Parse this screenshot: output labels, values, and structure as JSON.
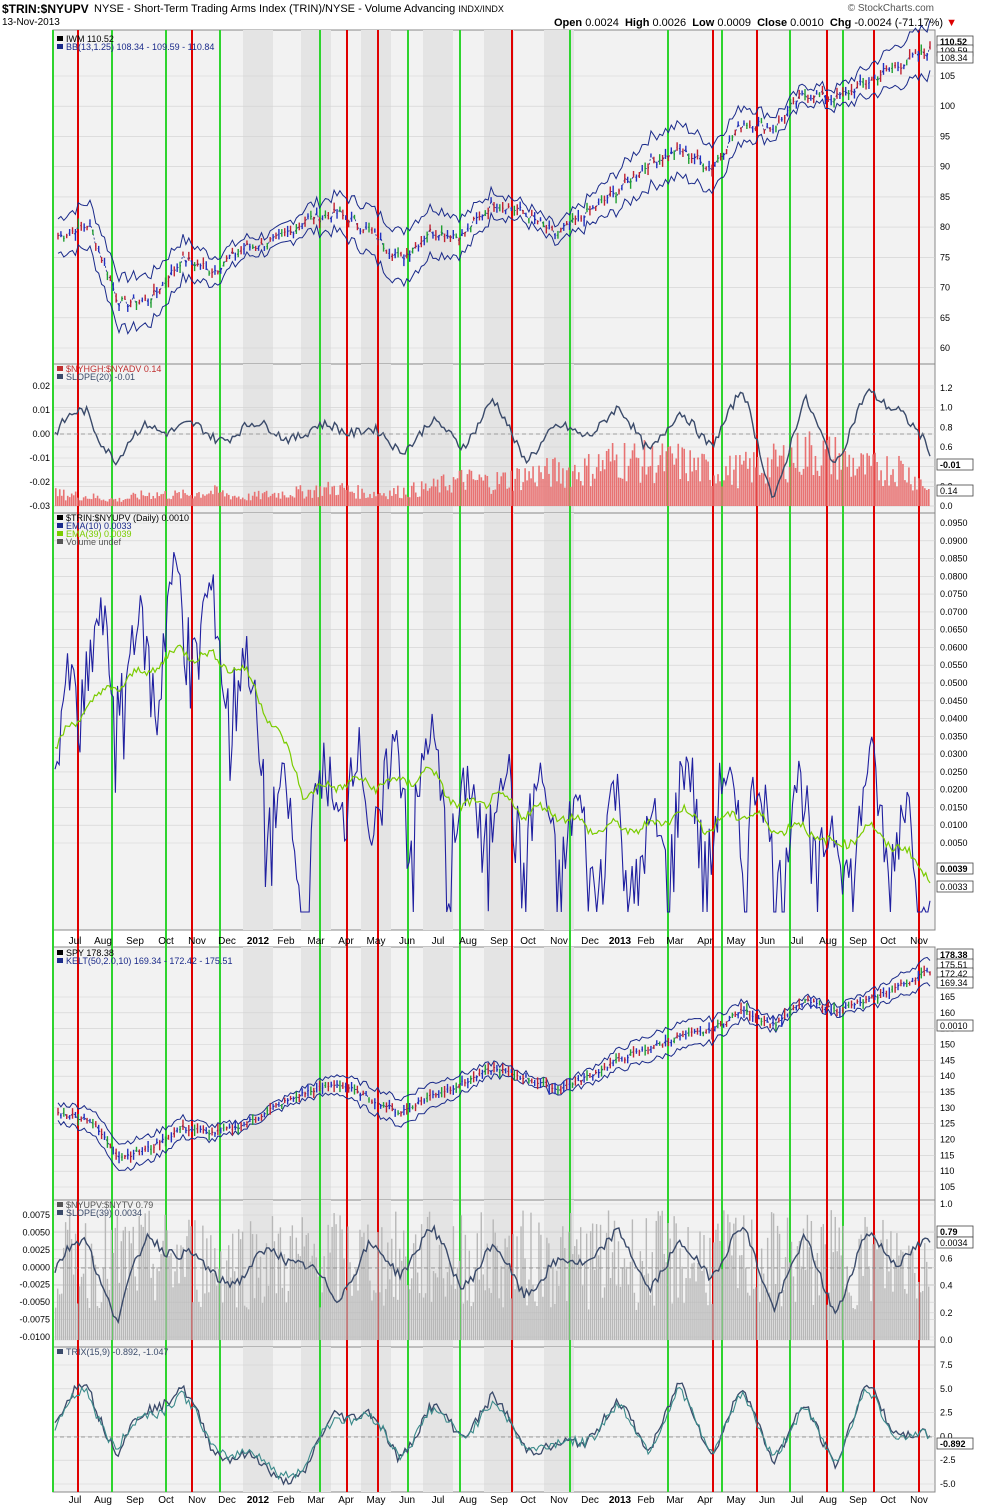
{
  "header": {
    "symbol": "$TRIN:$NYUPV",
    "description": "NYSE - Short-Term Trading Arms Index (TRIN)/NYSE - Volume Advancing",
    "exchange": "INDX/INDX",
    "date": "13-Nov-2013",
    "open_label": "Open",
    "open": "0.0024",
    "high_label": "High",
    "high": "0.0026",
    "low_label": "Low",
    "low": "0.0009",
    "close_label": "Close",
    "close": "0.0010",
    "chg_label": "Chg",
    "chg": "-0.0024 (-71.17%)",
    "brand": "© StockCharts.com"
  },
  "colors": {
    "red_line": "#e00000",
    "green_line": "#2ed42e",
    "price_blue": "#2020a0",
    "ema_green": "#7acc00",
    "hist_red": "#e87272",
    "slope_line": "#3a4a6a",
    "volume_gray": "#b8b8b8"
  },
  "x_axis": {
    "months": [
      "Jul",
      "Aug",
      "Sep",
      "Oct",
      "Nov",
      "Dec",
      "2012",
      "Feb",
      "Mar",
      "Apr",
      "May",
      "Jun",
      "Jul",
      "Aug",
      "Sep",
      "Oct",
      "Nov",
      "Dec",
      "2013",
      "Feb",
      "Mar",
      "Apr",
      "May",
      "Jun",
      "Jul",
      "Aug",
      "Sep",
      "Oct",
      "Nov"
    ]
  },
  "chart_data": [
    {
      "type": "line",
      "panel": "IWM price with Bollinger Bands",
      "legend": [
        "IWM  110.52",
        "BB(13,1.25) 108.34 - 109.59 - 110.84"
      ],
      "y_ticks": [
        "105",
        "100",
        "95",
        "90",
        "85",
        "80",
        "75",
        "70",
        "65",
        "60"
      ],
      "ylim": [
        57,
        113
      ],
      "last_value_labels": [
        "110.52",
        "109.59",
        "108.34"
      ],
      "x": [
        "Jul",
        "Aug",
        "Sep",
        "Oct",
        "Nov",
        "Dec",
        "2012",
        "Feb",
        "Mar",
        "Apr",
        "May",
        "Jun",
        "Jul",
        "Aug",
        "Sep",
        "Oct",
        "Nov",
        "Dec",
        "2013",
        "Feb",
        "Mar",
        "Apr",
        "May",
        "Jun",
        "Jul",
        "Aug",
        "Sep",
        "Oct",
        "Nov"
      ],
      "series": [
        {
          "name": "IWM",
          "values": [
            78,
            80,
            66,
            67,
            74,
            72,
            76,
            77,
            81,
            82,
            79,
            74,
            79,
            78,
            84,
            82,
            78,
            82,
            86,
            91,
            93,
            90,
            98,
            97,
            103,
            102,
            105,
            108,
            110.5
          ]
        }
      ]
    },
    {
      "type": "bar",
      "panel": "$NYHGH:$NYADV with SLOPE(20)",
      "legend": [
        "$NYHGH:$NYADV  0.14",
        "SLOPE(20) -0.01"
      ],
      "y_ticks_left": [
        "0.02",
        "0.01",
        "0.00",
        "-0.01",
        "-0.02",
        "-0.03"
      ],
      "y_ticks_right": [
        "1.2",
        "1.0",
        "0.8",
        "0.6",
        "0.4",
        "0.2",
        "0.0"
      ],
      "last_value_labels": [
        "-0.01",
        "0.14"
      ],
      "series": [
        {
          "name": "$NYHGH:$NYADV",
          "values": [
            0.1,
            0.08,
            0.05,
            0.1,
            0.09,
            0.12,
            0.07,
            0.1,
            0.12,
            0.15,
            0.1,
            0.12,
            0.15,
            0.22,
            0.2,
            0.25,
            0.28,
            0.3,
            0.4,
            0.36,
            0.36,
            0.28,
            0.3,
            0.35,
            0.45,
            0.4,
            0.3,
            0.32,
            0.14
          ]
        },
        {
          "name": "SLOPE(20)",
          "values": [
            0.0,
            0.01,
            -0.012,
            0.005,
            0.002,
            0.0,
            0.001,
            0.003,
            -0.002,
            0.005,
            0.0,
            -0.005,
            0.003,
            -0.003,
            0.012,
            -0.008,
            0.0,
            0.002,
            0.008,
            -0.004,
            0.006,
            -0.002,
            0.016,
            -0.025,
            0.012,
            -0.01,
            0.015,
            0.013,
            -0.01
          ]
        }
      ]
    },
    {
      "type": "line",
      "panel": "$TRIN:$NYUPV (Daily) with EMA(10), EMA(39)",
      "legend": [
        "$TRIN:$NYUPV (Daily) 0.0010",
        "EMA(10) 0.0033",
        "EMA(39) 0.0039",
        "Volume undef"
      ],
      "y_ticks": [
        "0.0950",
        "0.0900",
        "0.0850",
        "0.0800",
        "0.0750",
        "0.0700",
        "0.0650",
        "0.0600",
        "0.0550",
        "0.0500",
        "0.0450",
        "0.0400",
        "0.0350",
        "0.0300",
        "0.0250",
        "0.0200",
        "0.0150",
        "0.0100",
        "0.0050"
      ],
      "log_scale": true,
      "last_value_labels": [
        "0.0039",
        "0.0033"
      ],
      "series": [
        {
          "name": "EMA(10)",
          "values": [
            0.008,
            0.03,
            0.025,
            0.03,
            0.045,
            0.035,
            0.022,
            0.007,
            0.004,
            0.01,
            0.008,
            0.009,
            0.01,
            0.006,
            0.008,
            0.007,
            0.006,
            0.005,
            0.006,
            0.004,
            0.008,
            0.006,
            0.008,
            0.005,
            0.007,
            0.004,
            0.008,
            0.006,
            0.0033
          ]
        },
        {
          "name": "EMA(39)",
          "values": [
            0.012,
            0.018,
            0.022,
            0.025,
            0.03,
            0.028,
            0.025,
            0.015,
            0.008,
            0.009,
            0.009,
            0.009,
            0.01,
            0.007,
            0.008,
            0.007,
            0.007,
            0.006,
            0.006,
            0.006,
            0.007,
            0.006,
            0.007,
            0.006,
            0.006,
            0.005,
            0.006,
            0.005,
            0.0039
          ]
        }
      ]
    },
    {
      "type": "line",
      "panel": "SPY price with Keltner Channels",
      "legend": [
        "SPY  178.38",
        "KELT(50,2.0,10) 169.34 - 172.42 - 175.51"
      ],
      "y_ticks": [
        "165",
        "160",
        "155",
        "150",
        "145",
        "140",
        "135",
        "130",
        "125",
        "120",
        "115",
        "110",
        "105"
      ],
      "ylim": [
        102,
        182
      ],
      "last_value_labels": [
        "178.38",
        "175.51",
        "172.42",
        "169.34",
        "0.0010"
      ],
      "series": [
        {
          "name": "SPY",
          "values": [
            130,
            128,
            115,
            118,
            125,
            123,
            126,
            132,
            137,
            140,
            135,
            130,
            136,
            140,
            145,
            142,
            138,
            142,
            148,
            152,
            156,
            158,
            165,
            160,
            168,
            165,
            168,
            173,
            178.4
          ]
        }
      ]
    },
    {
      "type": "bar",
      "panel": "$NYUPV:$NYTV with SLOPE(39)",
      "legend": [
        "$NYUPV:$NYTV  0.79",
        "SLOPE(39) 0.0034"
      ],
      "y_ticks_left": [
        "0.0075",
        "0.0050",
        "0.0025",
        "0.0000",
        "-0.0025",
        "-0.0050",
        "-0.0075",
        "-0.0100"
      ],
      "y_ticks_right": [
        "1.0",
        "0.8",
        "0.6",
        "0.4",
        "0.2",
        "0.0"
      ],
      "last_value_labels": [
        "0.79",
        "0.0034"
      ],
      "series": [
        {
          "name": "$NYUPV:$NYTV",
          "values": [
            0.5,
            0.6,
            0.4,
            0.6,
            0.5,
            0.5,
            0.6,
            0.5,
            0.5,
            0.6,
            0.4,
            0.5,
            0.6,
            0.5,
            0.5,
            0.6,
            0.4,
            0.5,
            0.6,
            0.5,
            0.6,
            0.5,
            0.6,
            0.4,
            0.6,
            0.5,
            0.6,
            0.5,
            0.79
          ]
        },
        {
          "name": "SLOPE(39)",
          "values": [
            0.0,
            0.005,
            -0.008,
            0.006,
            0.002,
            0.0,
            -0.002,
            0.004,
            0.0,
            -0.004,
            0.003,
            0.0,
            0.006,
            -0.002,
            0.003,
            -0.003,
            0.0,
            0.002,
            0.005,
            -0.002,
            0.003,
            0.0,
            0.006,
            -0.005,
            0.004,
            -0.006,
            0.005,
            0.002,
            0.0034
          ]
        }
      ]
    },
    {
      "type": "line",
      "panel": "TRIX(15,9)",
      "legend": [
        "TRIX(15,9) -0.892, -1.047"
      ],
      "y_ticks": [
        "7.5",
        "5.0",
        "2.5",
        "0.0",
        "-2.5",
        "-5.0"
      ],
      "ylim": [
        -5.2,
        8
      ],
      "last_value_labels": [
        "-0.892"
      ],
      "series": [
        {
          "name": "TRIX",
          "values": [
            1.0,
            6.0,
            -2.0,
            3.0,
            5.0,
            -1.0,
            -2.5,
            -4.0,
            -4.5,
            3.0,
            2.0,
            -2.0,
            2.5,
            0.5,
            3.5,
            -0.5,
            -2.0,
            0.0,
            3.0,
            -1.0,
            5.0,
            -1.5,
            4.5,
            -2.0,
            2.5,
            -2.5,
            5.0,
            0.5,
            -0.89
          ]
        }
      ]
    }
  ]
}
